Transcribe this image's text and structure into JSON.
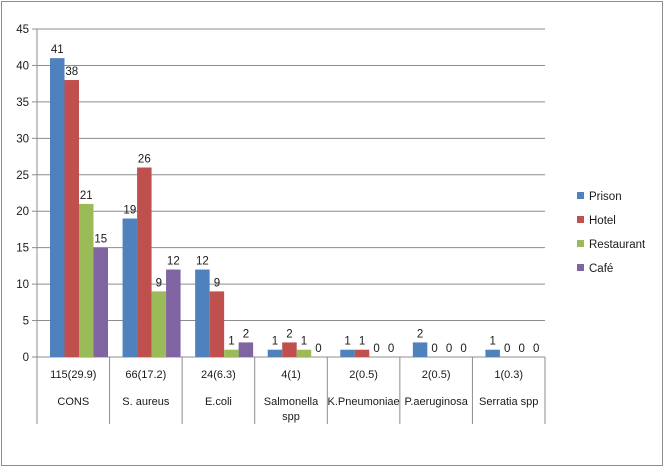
{
  "chart_data": {
    "type": "bar",
    "categories": [
      {
        "counts": "115(29.9)",
        "name": "CONS"
      },
      {
        "counts": "66(17.2)",
        "name": "S. aureus"
      },
      {
        "counts": "24(6.3)",
        "name": "E.coli"
      },
      {
        "counts": "4(1)",
        "name": "Salmonella spp"
      },
      {
        "counts": "2(0.5)",
        "name": "K.Pneumoniae"
      },
      {
        "counts": "2(0.5)",
        "name": "P.aeruginosa"
      },
      {
        "counts": "1(0.3)",
        "name": "Serratia spp"
      }
    ],
    "series": [
      {
        "name": "Prison",
        "color": "#4f81bd",
        "values": [
          41,
          19,
          12,
          1,
          1,
          2,
          1
        ]
      },
      {
        "name": "Hotel",
        "color": "#c0504d",
        "values": [
          38,
          26,
          9,
          2,
          1,
          0,
          0
        ]
      },
      {
        "name": "Restaurant",
        "color": "#9bbb59",
        "values": [
          21,
          9,
          1,
          1,
          0,
          0,
          0
        ]
      },
      {
        "name": "Café",
        "color": "#8064a2",
        "values": [
          15,
          12,
          2,
          0,
          0,
          0,
          0
        ]
      }
    ],
    "ylim": [
      0,
      45
    ],
    "yticks": [
      0,
      5,
      10,
      15,
      20,
      25,
      30,
      35,
      40,
      45
    ],
    "grid": true,
    "legend_position": "right",
    "data_labels": true
  }
}
